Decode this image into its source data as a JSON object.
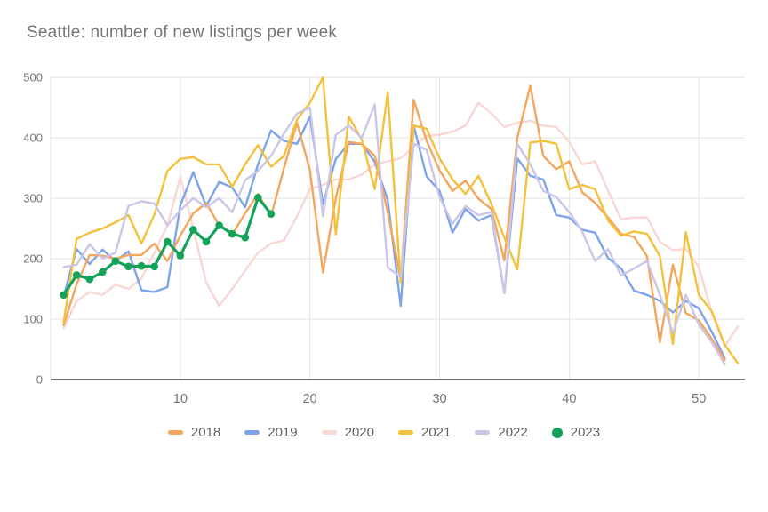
{
  "chart_data": {
    "type": "line",
    "title": "Seattle: number of new listings per week",
    "x_ticks": [
      10,
      20,
      30,
      40,
      50
    ],
    "y_ticks": [
      0,
      100,
      200,
      300,
      400,
      500
    ],
    "xlim": [
      0,
      54
    ],
    "ylim": [
      0,
      500
    ],
    "grid": true,
    "legend_position": "bottom",
    "axis_color": "#757575",
    "gridline_color": "#e3e3e3",
    "title_color": "#757575",
    "legend_text_color": "#616161",
    "series": [
      {
        "name": "2018",
        "color": "#f4a55e",
        "marker": "line",
        "z": 2,
        "width": 2.4,
        "values": [
          90,
          158,
          206,
          205,
          200,
          206,
          206,
          225,
          196,
          238,
          275,
          292,
          255,
          240,
          275,
          307,
          270,
          350,
          425,
          346,
          177,
          300,
          393,
          390,
          370,
          277,
          165,
          463,
          395,
          346,
          312,
          329,
          299,
          282,
          197,
          400,
          486,
          370,
          348,
          361,
          310,
          292,
          268,
          241,
          236,
          204,
          62,
          190,
          110,
          98,
          67,
          32
        ]
      },
      {
        "name": "2019",
        "color": "#7da4eb",
        "marker": "line",
        "z": 1,
        "width": 2.4,
        "values": [
          138,
          216,
          191,
          215,
          196,
          212,
          148,
          145,
          153,
          288,
          343,
          287,
          327,
          318,
          285,
          356,
          412,
          395,
          390,
          435,
          290,
          365,
          390,
          390,
          360,
          297,
          122,
          420,
          336,
          312,
          243,
          282,
          263,
          272,
          143,
          366,
          337,
          331,
          272,
          268,
          248,
          243,
          201,
          184,
          147,
          140,
          130,
          111,
          130,
          118,
          79,
          35
        ]
      },
      {
        "name": "2020",
        "color": "#f8d7d5",
        "marker": "line",
        "z": 0,
        "width": 2.4,
        "values": [
          85,
          130,
          145,
          140,
          157,
          150,
          167,
          210,
          255,
          335,
          250,
          160,
          122,
          150,
          180,
          210,
          225,
          230,
          270,
          315,
          322,
          331,
          331,
          339,
          356,
          361,
          366,
          385,
          403,
          405,
          410,
          420,
          458,
          440,
          418,
          425,
          428,
          420,
          418,
          393,
          356,
          361,
          312,
          265,
          268,
          268,
          228,
          214,
          216,
          186,
          110,
          55,
          88
        ]
      },
      {
        "name": "2021",
        "color": "#f3c13c",
        "marker": "line",
        "z": 3,
        "width": 2.4,
        "values": [
          95,
          233,
          243,
          250,
          260,
          272,
          225,
          273,
          345,
          365,
          368,
          356,
          356,
          319,
          356,
          388,
          352,
          370,
          430,
          458,
          500,
          240,
          435,
          397,
          315,
          475,
          160,
          420,
          415,
          366,
          331,
          307,
          337,
          290,
          235,
          182,
          392,
          395,
          390,
          315,
          322,
          315,
          263,
          238,
          245,
          241,
          204,
          59,
          244,
          140,
          113,
          57,
          27
        ]
      },
      {
        "name": "2022",
        "color": "#cbc6e7",
        "marker": "line",
        "z": 4,
        "width": 2.4,
        "values": [
          186,
          190,
          224,
          200,
          210,
          287,
          295,
          291,
          255,
          280,
          300,
          285,
          300,
          277,
          330,
          345,
          370,
          407,
          440,
          450,
          270,
          405,
          420,
          400,
          455,
          185,
          170,
          390,
          380,
          302,
          258,
          287,
          272,
          277,
          143,
          390,
          356,
          312,
          302,
          277,
          245,
          196,
          216,
          172,
          184,
          196,
          140,
          77,
          140,
          91,
          62,
          25
        ]
      },
      {
        "name": "2023",
        "color": "#14a25a",
        "marker": "circle",
        "z": 5,
        "width": 3.2,
        "values": [
          140,
          173,
          166,
          178,
          196,
          187,
          188,
          187,
          228,
          205,
          248,
          228,
          255,
          241,
          235,
          301,
          274
        ]
      }
    ]
  }
}
